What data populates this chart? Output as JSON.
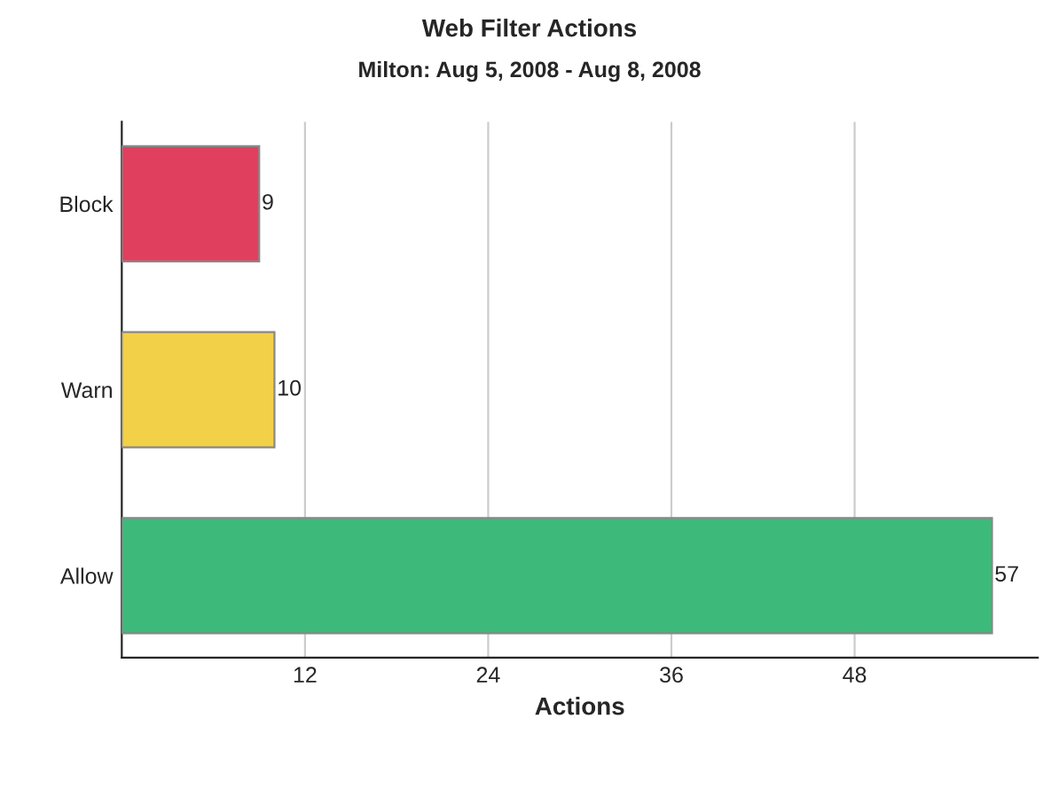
{
  "chart_data": {
    "type": "bar",
    "orientation": "horizontal",
    "title": "Web Filter Actions",
    "subtitle": "Milton: Aug 5, 2008 - Aug 8, 2008",
    "xlabel": "Actions",
    "categories": [
      "Block",
      "Warn",
      "Allow"
    ],
    "values": [
      9,
      10,
      57
    ],
    "colors": [
      "#e0405e",
      "#f2d048",
      "#3dba7a"
    ],
    "xlim": [
      0,
      60
    ],
    "xticks": [
      12,
      24,
      36,
      48
    ],
    "grid": "x",
    "data_labels": true
  }
}
